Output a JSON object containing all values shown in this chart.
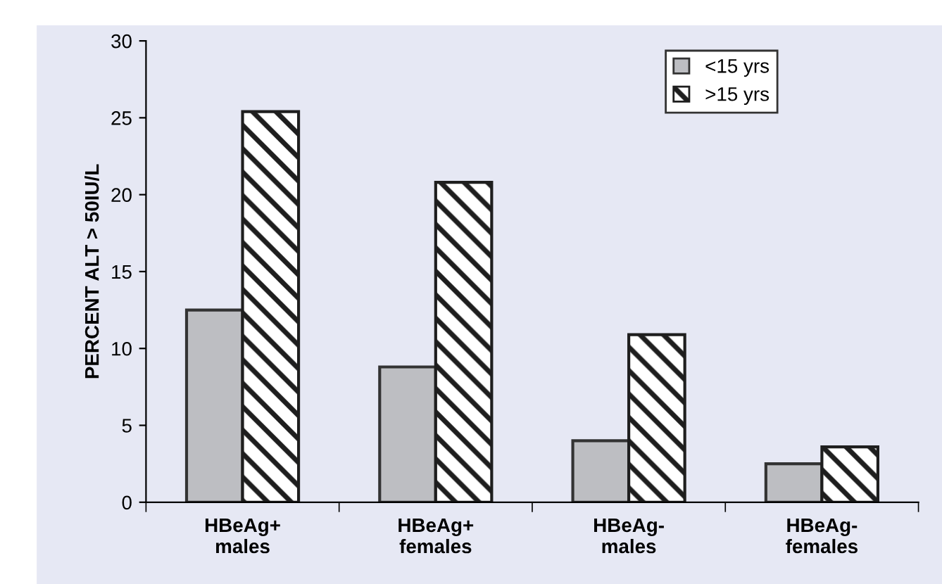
{
  "chart_data": {
    "type": "bar",
    "ylabel": "PERCENT ALT > 50IU/L",
    "categories": [
      "HBeAg+\nmales",
      "HBeAg+\nfemales",
      "HBeAg-\nmales",
      "HBeAg-\nfemales"
    ],
    "series": [
      {
        "name": "<15 yrs",
        "color": "#bdbec2",
        "values": [
          12.5,
          8.8,
          4.0,
          2.5
        ]
      },
      {
        "name": ">15 yrs",
        "color": "#1e1e1e",
        "values": [
          25.4,
          20.8,
          10.9,
          3.6
        ]
      }
    ],
    "ylim": [
      0,
      30
    ],
    "yticks": [
      0,
      5,
      10,
      15,
      20,
      25,
      30
    ],
    "grid": false,
    "legend": "top right"
  }
}
